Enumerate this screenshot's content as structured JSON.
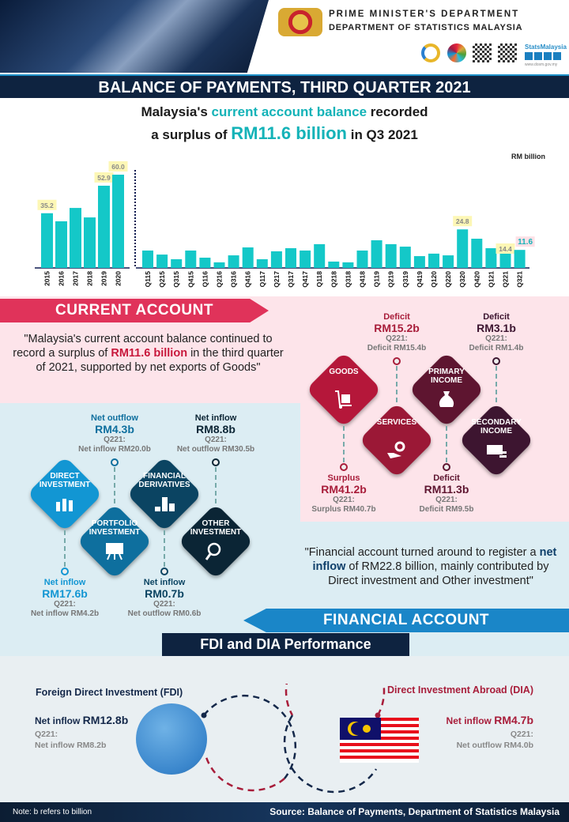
{
  "header": {
    "org_line1": "PRIME MINISTER'S DEPARTMENT",
    "org_line2": "DEPARTMENT OF STATISTICS MALAYSIA",
    "social_brand": "StatsMalaysia",
    "website": "www.dosm.gov.my",
    "icons": [
      "coat-of-arms",
      "statistics-logo",
      "sdg-wheel",
      "qr-code",
      "qr-code-facebook",
      "facebook",
      "instagram",
      "twitter",
      "youtube"
    ]
  },
  "title": "BALANCE OF PAYMENTS, THIRD QUARTER 2021",
  "headline": {
    "p1": "Malaysia's ",
    "p2": "current account balance",
    "p3": " recorded",
    "p4": "a surplus of ",
    "p5": "RM11.6 billion",
    "p6": " in Q3 2021"
  },
  "chart_data": {
    "type": "bar",
    "unit_label": "RM billion",
    "ylim": [
      0,
      60
    ],
    "grid": false,
    "categories": [
      "2015",
      "2016",
      "2017",
      "2018",
      "2019",
      "2020",
      "Q115",
      "Q215",
      "Q315",
      "Q415",
      "Q116",
      "Q216",
      "Q316",
      "Q416",
      "Q117",
      "Q217",
      "Q317",
      "Q417",
      "Q118",
      "Q218",
      "Q318",
      "Q418",
      "Q119",
      "Q219",
      "Q319",
      "Q419",
      "Q120",
      "Q220",
      "Q320",
      "Q420",
      "Q121",
      "Q221",
      "Q321"
    ],
    "values": [
      35.2,
      30.0,
      38.6,
      32.5,
      52.9,
      60.0,
      11.2,
      8.6,
      5.6,
      11.2,
      6.6,
      3.6,
      8.1,
      13.2,
      5.6,
      10.7,
      12.7,
      11.2,
      15.3,
      4.1,
      3.6,
      11.2,
      17.8,
      15.3,
      13.7,
      7.6,
      9.2,
      8.1,
      24.8,
      18.8,
      12.7,
      14.4,
      11.6
    ],
    "data_labels": {
      "2015": "35.2",
      "2019": "52.9",
      "2020": "60.0",
      "Q320": "24.8",
      "Q221": "14.4",
      "Q321": "11.6"
    },
    "color": "#14c8c8"
  },
  "current_account": {
    "banner": "CURRENT ACCOUNT",
    "color": "#e0335a",
    "quote": {
      "p1": "\"Malaysia's current account balance continued to record a surplus of ",
      "p2": "RM11.6 billion",
      "p3": " in the third quarter of 2021, supported by net exports of Goods\""
    },
    "items": [
      {
        "name": "GOODS",
        "icon": "trolley-box-icon",
        "kind": "Surplus",
        "value": "RM41.2b",
        "q_label": "Q221:",
        "q_value": "Surplus RM40.7b",
        "color": "#b5173a"
      },
      {
        "name": "SERVICES",
        "icon": "hand-gear-icon",
        "kind": "Deficit",
        "value": "RM15.2b",
        "q_label": "Q221:",
        "q_value": "Deficit RM15.4b",
        "color": "#9b1836"
      },
      {
        "name": "PRIMARY INCOME",
        "icon": "money-bag-icon",
        "kind": "Deficit",
        "value": "RM11.3b",
        "q_label": "Q221:",
        "q_value": "Deficit RM9.5b",
        "color": "#5e1530"
      },
      {
        "name": "SECONDARY INCOME",
        "icon": "cash-coins-icon",
        "kind": "Deficit",
        "value": "RM3.1b",
        "q_label": "Q221:",
        "q_value": "Deficit RM1.4b",
        "color": "#3d1530"
      }
    ]
  },
  "financial_account": {
    "banner": "FINANCIAL ACCOUNT",
    "color": "#1a86c8",
    "quote": {
      "p1": "\"Financial account turned around to register a ",
      "p2": "net inflow",
      "p3": " of RM22.8 billion, mainly contributed by Direct investment and Other investment\""
    },
    "items": [
      {
        "name": "DIRECT INVESTMENT",
        "icon": "bar-chart-icon",
        "kind": "Net inflow",
        "value": "RM17.6b",
        "q_label": "Q221:",
        "q_value": "Net inflow RM4.2b",
        "color": "#1296d3"
      },
      {
        "name": "PORTFOLIO INVESTMENT",
        "icon": "presentation-board-icon",
        "kind": "Net outflow",
        "value": "RM4.3b",
        "q_label": "Q221:",
        "q_value": "Net inflow RM20.0b",
        "color": "#0e6f9e"
      },
      {
        "name": "FINANCIAL DERIVATIVES",
        "icon": "coin-stacks-icon",
        "kind": "Net inflow",
        "value": "RM0.7b",
        "q_label": "Q221:",
        "q_value": "Net outflow RM0.6b",
        "color": "#0b4462"
      },
      {
        "name": "OTHER INVESTMENT",
        "icon": "magnifier-trend-icon",
        "kind": "Net inflow",
        "value": "RM8.8b",
        "q_label": "Q221:",
        "q_value": "Net outflow RM30.5b",
        "color": "#0b2535"
      }
    ]
  },
  "fdi_dia": {
    "title": "FDI and DIA Performance",
    "fdi": {
      "title": "Foreign Direct Investment (FDI)",
      "kind": "Net inflow ",
      "value": "RM12.8b",
      "q_label": "Q221:",
      "q_value": "Net inflow RM8.2b"
    },
    "dia": {
      "title": "Direct Investment Abroad (DIA)",
      "kind": "Net inflow ",
      "value": "RM4.7b",
      "q_label": "Q221:",
      "q_value": "Net outflow RM4.0b"
    }
  },
  "footer": {
    "note": "Note: b refers to billion",
    "source": "Source: Balance of Payments, Department of Statistics Malaysia"
  }
}
